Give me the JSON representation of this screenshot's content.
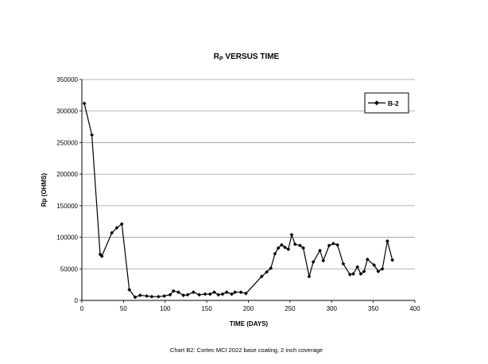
{
  "chart_data": {
    "type": "line",
    "title_main": "R",
    "title_sub": "P",
    "title_rest": " VERSUS TIME",
    "xlabel": "TIME (DAYS)",
    "ylabel": "Rp (OHMS)",
    "caption": "Chart B2: Cortec MCI 2022 base coating, 2 inch coverage",
    "xlim": [
      0,
      400
    ],
    "ylim": [
      0,
      350000
    ],
    "x_ticks": [
      "0",
      "50",
      "100",
      "150",
      "200",
      "250",
      "300",
      "350",
      "400"
    ],
    "y_ticks": [
      "0",
      "50000",
      "100000",
      "150000",
      "200000",
      "250000",
      "300000",
      "350000"
    ],
    "grid": "horizontal",
    "legend": "top-right",
    "series": [
      {
        "name": "B-2",
        "color": "#000000",
        "marker": "diamond",
        "points": [
          [
            3,
            312000
          ],
          [
            12,
            262000
          ],
          [
            22,
            73000
          ],
          [
            24,
            70000
          ],
          [
            36,
            107000
          ],
          [
            42,
            115000
          ],
          [
            48,
            121000
          ],
          [
            57,
            17000
          ],
          [
            64,
            5000
          ],
          [
            70,
            8000
          ],
          [
            78,
            7000
          ],
          [
            84,
            6000
          ],
          [
            92,
            6000
          ],
          [
            99,
            7000
          ],
          [
            106,
            9000
          ],
          [
            110,
            15000
          ],
          [
            116,
            13000
          ],
          [
            122,
            8000
          ],
          [
            127,
            9000
          ],
          [
            134,
            13000
          ],
          [
            141,
            9000
          ],
          [
            148,
            10000
          ],
          [
            154,
            10000
          ],
          [
            159,
            13000
          ],
          [
            164,
            9000
          ],
          [
            169,
            10000
          ],
          [
            174,
            13000
          ],
          [
            180,
            10000
          ],
          [
            184,
            13000
          ],
          [
            191,
            13000
          ],
          [
            197,
            11000
          ],
          [
            216,
            38000
          ],
          [
            222,
            45000
          ],
          [
            227,
            51000
          ],
          [
            232,
            74000
          ],
          [
            236,
            83000
          ],
          [
            240,
            88000
          ],
          [
            244,
            84000
          ],
          [
            248,
            81000
          ],
          [
            252,
            104000
          ],
          [
            256,
            89000
          ],
          [
            262,
            87000
          ],
          [
            266,
            83000
          ],
          [
            273,
            38000
          ],
          [
            278,
            61000
          ],
          [
            286,
            79000
          ],
          [
            290,
            63000
          ],
          [
            297,
            87000
          ],
          [
            302,
            90000
          ],
          [
            307,
            88000
          ],
          [
            314,
            58000
          ],
          [
            322,
            41000
          ],
          [
            326,
            42000
          ],
          [
            331,
            53000
          ],
          [
            335,
            42000
          ],
          [
            339,
            46000
          ],
          [
            343,
            65000
          ],
          [
            351,
            56000
          ],
          [
            356,
            46000
          ],
          [
            361,
            50000
          ],
          [
            367,
            94000
          ],
          [
            373,
            64000
          ]
        ]
      }
    ]
  }
}
